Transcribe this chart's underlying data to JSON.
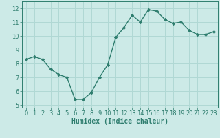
{
  "x": [
    0,
    1,
    2,
    3,
    4,
    5,
    6,
    7,
    8,
    9,
    10,
    11,
    12,
    13,
    14,
    15,
    16,
    17,
    18,
    19,
    20,
    21,
    22,
    23
  ],
  "y": [
    8.3,
    8.5,
    8.3,
    7.6,
    7.2,
    7.0,
    5.4,
    5.4,
    5.9,
    7.0,
    7.9,
    9.9,
    10.6,
    11.5,
    11.0,
    11.9,
    11.8,
    11.2,
    10.9,
    11.0,
    10.4,
    10.1,
    10.1,
    10.3
  ],
  "line_color": "#2e7d6e",
  "marker": "D",
  "marker_size": 2.2,
  "line_width": 1.0,
  "bg_color": "#cceae7",
  "grid_color": "#b0d8d4",
  "xlabel": "Humidex (Indice chaleur)",
  "xlim": [
    -0.5,
    23.5
  ],
  "ylim": [
    4.8,
    12.5
  ],
  "yticks": [
    5,
    6,
    7,
    8,
    9,
    10,
    11,
    12
  ],
  "xticks": [
    0,
    1,
    2,
    3,
    4,
    5,
    6,
    7,
    8,
    9,
    10,
    11,
    12,
    13,
    14,
    15,
    16,
    17,
    18,
    19,
    20,
    21,
    22,
    23
  ],
  "tick_color": "#2e7d6e",
  "label_fontsize": 7.0,
  "tick_fontsize": 6.0
}
